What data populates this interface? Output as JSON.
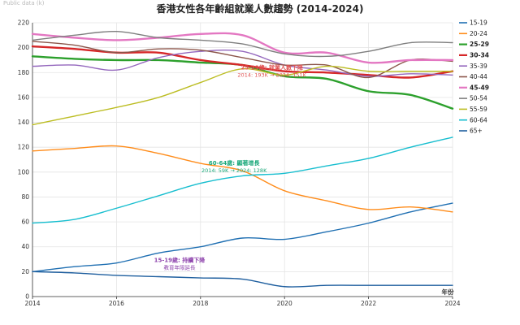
{
  "corner_label": "Public data (k)",
  "chart_data": {
    "type": "line",
    "title": "香港女性各年齡組就業人數趨勢 (2014-2024)",
    "xlabel": "年份",
    "ylabel": "",
    "x": [
      2014,
      2015,
      2016,
      2017,
      2018,
      2019,
      2020,
      2021,
      2022,
      2023,
      2024
    ],
    "xlim": [
      2014,
      2024
    ],
    "ylim": [
      0,
      220
    ],
    "xticks": [
      2014,
      2016,
      2018,
      2020,
      2022,
      2024
    ],
    "yticks": [
      0,
      20,
      40,
      60,
      80,
      100,
      120,
      140,
      160,
      180,
      200,
      220
    ],
    "grid": true,
    "legend_position": "right",
    "series": [
      {
        "name": "15-19",
        "color": "#1f6fb2",
        "bold": false,
        "values": [
          20,
          24,
          27,
          35,
          40,
          47,
          46,
          52,
          59,
          68,
          75
        ]
      },
      {
        "name": "20-24",
        "color": "#ff8c1a",
        "bold": false,
        "values": [
          117,
          119,
          121,
          115,
          107,
          101,
          85,
          77,
          70,
          72,
          68
        ]
      },
      {
        "name": "25-29",
        "color": "#2ca02c",
        "bold": true,
        "values": [
          193,
          191,
          190,
          190,
          188,
          186,
          177,
          175,
          165,
          162,
          151
        ]
      },
      {
        "name": "30-34",
        "color": "#d62728",
        "bold": true,
        "values": [
          201,
          199,
          196,
          196,
          190,
          186,
          181,
          180,
          178,
          176,
          181
        ]
      },
      {
        "name": "35-39",
        "color": "#9467bd",
        "bold": false,
        "values": [
          185,
          186,
          182,
          192,
          197,
          197,
          186,
          182,
          177,
          179,
          178
        ]
      },
      {
        "name": "40-44",
        "color": "#8c564b",
        "bold": false,
        "values": [
          205,
          202,
          196,
          199,
          198,
          192,
          186,
          186,
          176,
          190,
          189
        ]
      },
      {
        "name": "45-49",
        "color": "#e377c2",
        "bold": true,
        "values": [
          211,
          208,
          206,
          208,
          211,
          210,
          196,
          196,
          188,
          190,
          190
        ]
      },
      {
        "name": "50-54",
        "color": "#7f7f7f",
        "bold": false,
        "values": [
          206,
          210,
          213,
          208,
          206,
          203,
          195,
          193,
          197,
          204,
          204
        ]
      },
      {
        "name": "55-59",
        "color": "#bcbd22",
        "bold": false,
        "values": [
          138,
          145,
          152,
          160,
          172,
          183,
          178,
          185,
          181,
          181,
          181
        ]
      },
      {
        "name": "60-64",
        "color": "#17becf",
        "bold": false,
        "values": [
          59,
          62,
          71,
          81,
          91,
          97,
          99,
          105,
          111,
          120,
          128
        ]
      },
      {
        "name": "65+",
        "color": "#1f5f9f",
        "bold": false,
        "values": [
          20,
          19,
          17,
          16,
          15,
          14,
          8,
          9,
          9,
          9,
          9
        ]
      }
    ],
    "annotations": [
      {
        "id": "ann-25-29",
        "x": 2019.7,
        "y": 180,
        "headline": "25-29歲: 就業人數下降",
        "detail": "2014: 193K → 2024: 151K",
        "color": "#e05252"
      },
      {
        "id": "ann-60-64",
        "x": 2018.8,
        "y": 103,
        "headline": "60-64歲: 顯著增長",
        "detail": "2014: 59K → 2024: 128K",
        "color": "#1aa87a"
      },
      {
        "id": "ann-15-19",
        "x": 2017.5,
        "y": 25,
        "headline": "15-19歲: 持續下降",
        "detail": "教育年限延長",
        "color": "#8e44ad"
      }
    ]
  }
}
